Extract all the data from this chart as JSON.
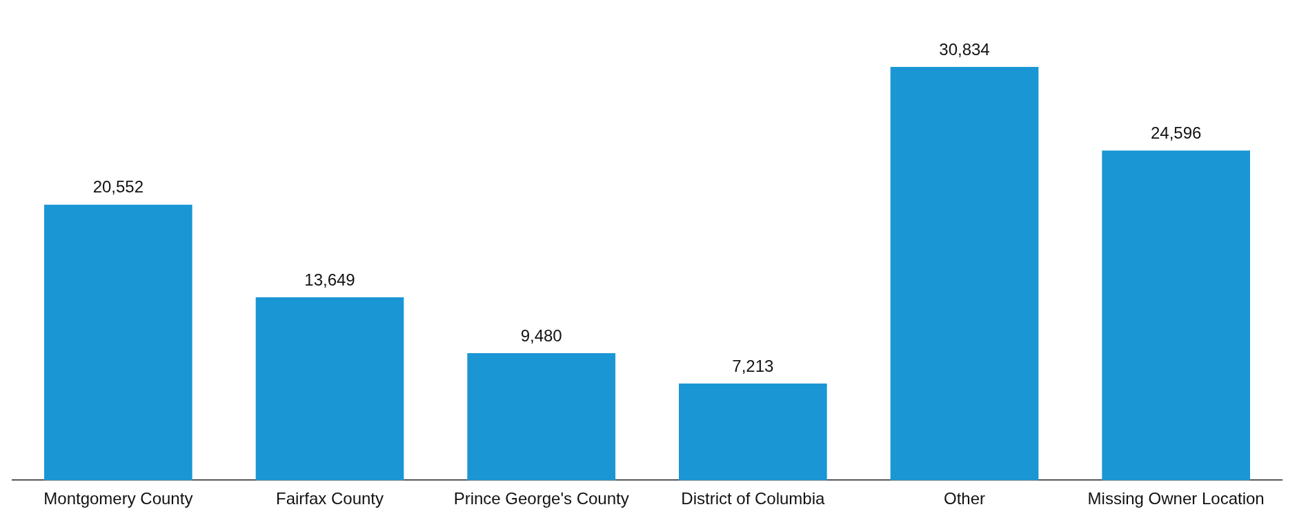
{
  "chart_data": {
    "type": "bar",
    "categories": [
      "Montgomery County",
      "Fairfax County",
      "Prince George's County",
      "District of Columbia",
      "Other",
      "Missing Owner Location"
    ],
    "values": [
      20552,
      13649,
      9480,
      7213,
      30834,
      24596
    ],
    "value_labels": [
      "20,552",
      "13,649",
      "9,480",
      "7,213",
      "30,834",
      "24,596"
    ],
    "color": "#1a96d4",
    "grid": false,
    "legend": false,
    "tick_labels": "x"
  }
}
